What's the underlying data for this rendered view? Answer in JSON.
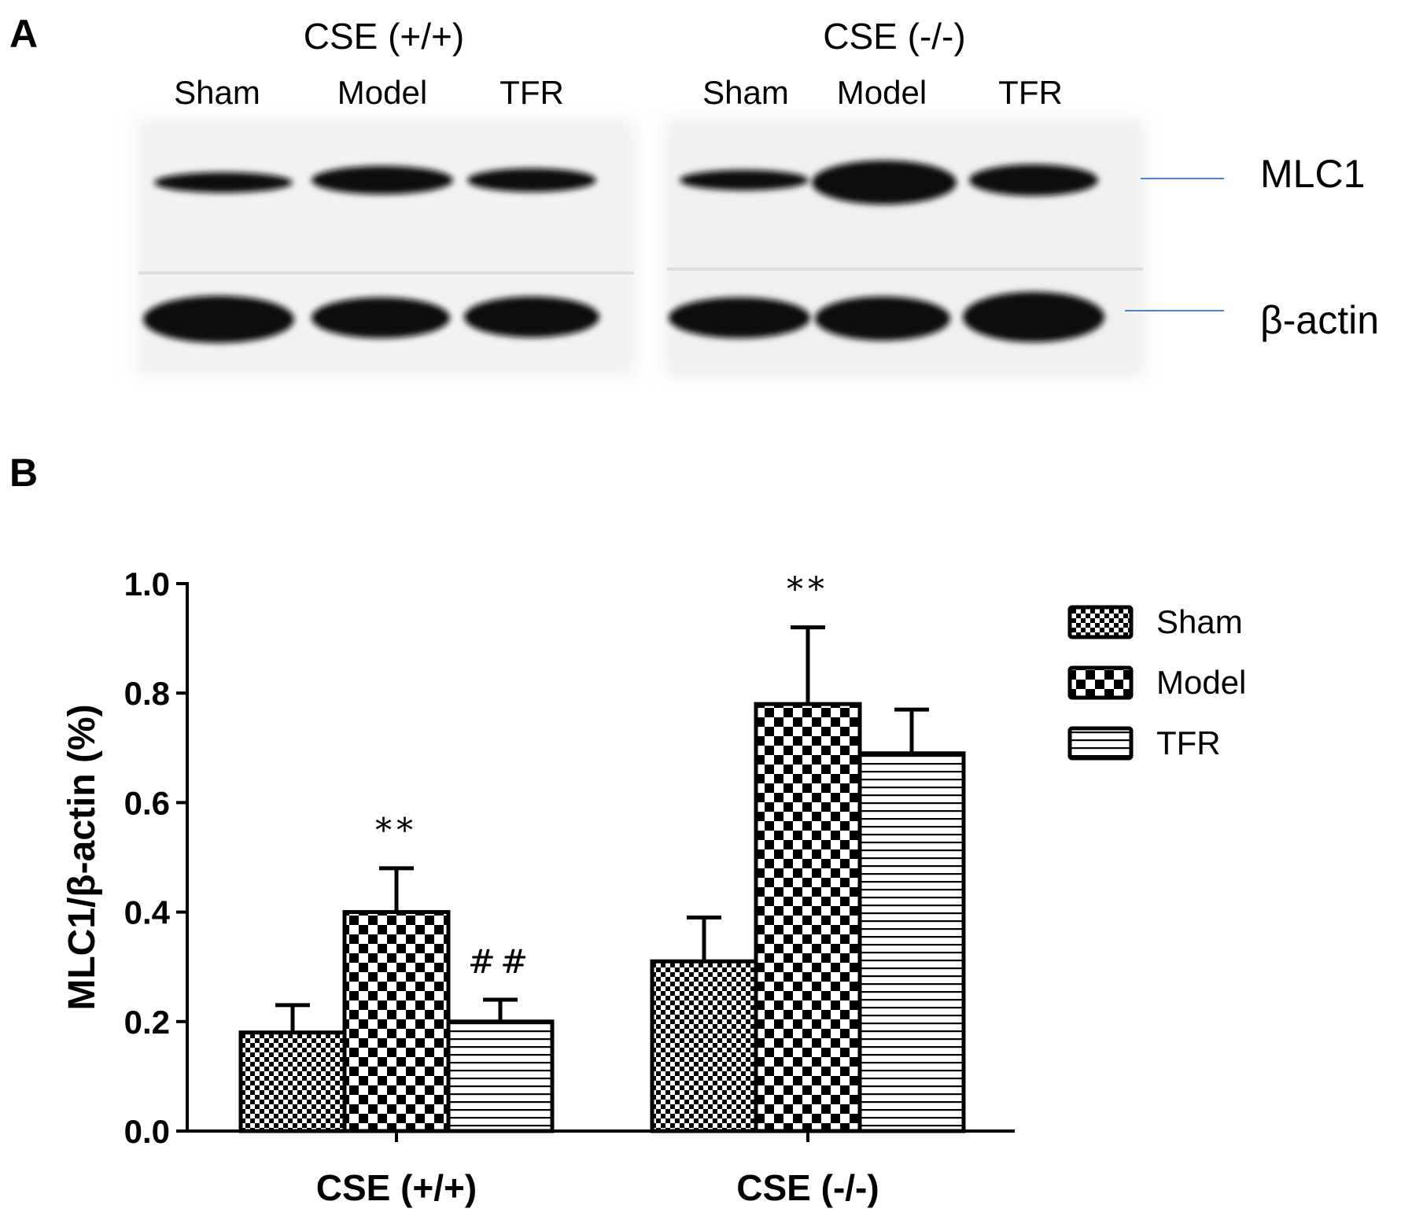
{
  "panel_a": {
    "label": "A",
    "groups": [
      {
        "header": "CSE (+/+)",
        "lanes": [
          "Sham",
          "Model",
          "TFR"
        ]
      },
      {
        "header": "CSE (-/-)",
        "lanes": [
          "Sham",
          "Model",
          "TFR"
        ]
      }
    ],
    "bands": [
      "MLC1",
      "β-actin"
    ],
    "line_color": "#4a86c8"
  },
  "chart_data": {
    "type": "bar",
    "panel_label": "B",
    "categories": [
      "CSE (+/+)",
      "CSE (-/-)"
    ],
    "series": [
      {
        "name": "Sham",
        "pattern": "fine-checker",
        "values": [
          0.18,
          0.31
        ],
        "errors": [
          0.05,
          0.08
        ]
      },
      {
        "name": "Model",
        "pattern": "large-checker",
        "values": [
          0.4,
          0.78
        ],
        "errors": [
          0.08,
          0.14
        ]
      },
      {
        "name": "TFR",
        "pattern": "horizontal-stripes",
        "values": [
          0.2,
          0.69
        ],
        "errors": [
          0.04,
          0.08
        ]
      }
    ],
    "annotations": [
      {
        "series": "Model",
        "category": "CSE (+/+)",
        "text": "**"
      },
      {
        "series": "TFR",
        "category": "CSE (+/+)",
        "text": "##"
      },
      {
        "series": "Model",
        "category": "CSE (-/-)",
        "text": "**"
      }
    ],
    "ylabel": "MLC1/β-actin (%)",
    "xlabel": "",
    "ylim": [
      0,
      1.0
    ],
    "yticks": [
      "0.0",
      "0.2",
      "0.4",
      "0.6",
      "0.8",
      "1.0"
    ],
    "legend_position": "top-right",
    "grid": false
  }
}
